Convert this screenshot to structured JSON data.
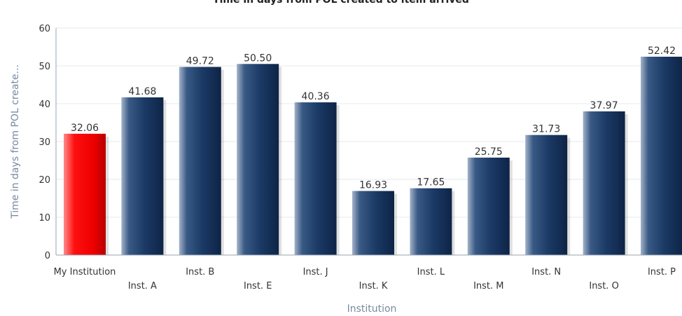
{
  "chart_data": {
    "type": "bar",
    "title": "Time in days from POL created to item arrived",
    "xlabel": "Institution",
    "ylabel": "Time in days from POL create...",
    "ylim": [
      0,
      60
    ],
    "yticks": [
      0,
      10,
      20,
      30,
      40,
      50,
      60
    ],
    "grid": true,
    "categories": [
      "My Institution",
      "Inst. A",
      "Inst. B",
      "Inst. E",
      "Inst. J",
      "Inst. K",
      "Inst. L",
      "Inst. M",
      "Inst. N",
      "Inst. O",
      "Inst. P"
    ],
    "values": [
      32.06,
      41.68,
      49.72,
      50.5,
      40.36,
      16.93,
      17.65,
      25.75,
      31.73,
      37.97,
      52.42
    ],
    "data_labels": [
      "32.06",
      "41.68",
      "49.72",
      "50.50",
      "40.36",
      "16.93",
      "17.65",
      "25.75",
      "31.73",
      "37.97",
      "52.42"
    ],
    "colors": {
      "highlight": "#ff0000",
      "bar": "#1f3f6e",
      "grid": "#e4e8ee",
      "axis": "#9aa4b2"
    },
    "highlight_index": 0
  }
}
